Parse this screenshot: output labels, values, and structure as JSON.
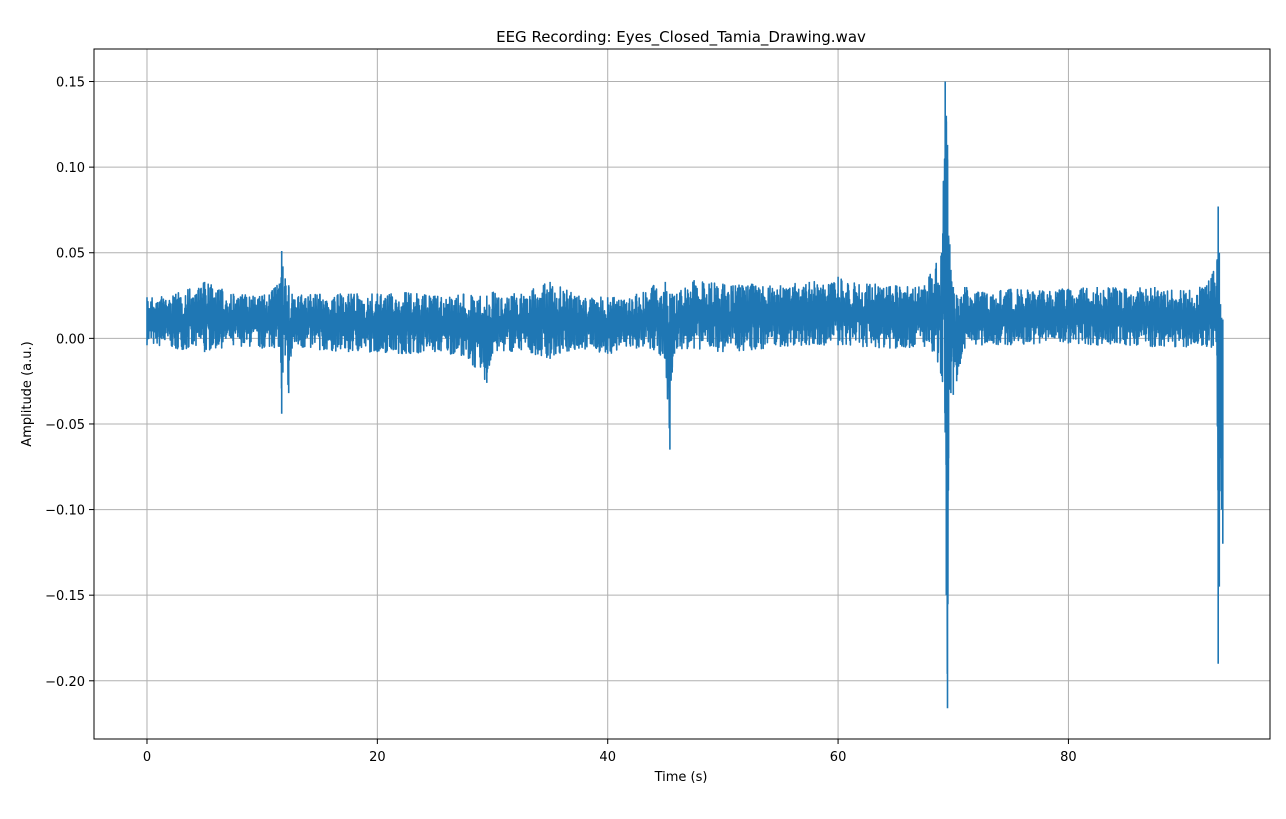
{
  "chart_data": {
    "type": "line",
    "title": "EEG Recording: Eyes_Closed_Tamia_Drawing.wav",
    "xlabel": "Time (s)",
    "ylabel": "Amplitude (a.u.)",
    "xlim": [
      -4.6,
      97.5
    ],
    "ylim": [
      -0.234,
      0.169
    ],
    "xticks": [
      0,
      20,
      40,
      60,
      80
    ],
    "xtick_labels": [
      "0",
      "20",
      "40",
      "60",
      "80"
    ],
    "yticks": [
      0.15,
      0.1,
      0.05,
      0.0,
      -0.05,
      -0.1,
      -0.15,
      -0.2
    ],
    "ytick_labels": [
      "0.15",
      "0.10",
      "0.05",
      "0.00",
      "−0.05",
      "−0.10",
      "−0.15",
      "−0.20"
    ],
    "grid": true,
    "line_color": "#1f77b4",
    "series": [
      {
        "x": [
          0,
          2.5,
          5,
          7.5,
          10,
          11.5,
          11.7,
          11.8,
          12,
          12.3,
          12.6,
          15,
          17.5,
          20,
          22.5,
          25,
          27.5,
          29.5,
          30,
          32.5,
          35,
          37.5,
          40,
          42.5,
          44,
          45,
          45.4,
          45.6,
          45.8,
          46,
          47.5,
          50,
          52.5,
          55,
          57.5,
          60,
          62.5,
          65,
          67.5,
          69,
          69.3,
          69.4,
          69.5,
          69.6,
          69.7,
          69.8,
          70,
          70.3,
          70.6,
          71,
          72.5,
          75,
          77.5,
          80,
          82.5,
          85,
          87.5,
          90,
          92,
          92.9,
          93,
          93.1,
          93.2,
          93.3,
          93.4
        ],
        "y_low": [
          -0.004,
          -0.006,
          -0.008,
          -0.004,
          -0.006,
          -0.005,
          -0.044,
          -0.02,
          -0.01,
          -0.032,
          -0.006,
          -0.007,
          -0.008,
          -0.008,
          -0.009,
          -0.008,
          -0.01,
          -0.026,
          -0.009,
          -0.007,
          -0.012,
          -0.006,
          -0.009,
          -0.006,
          -0.007,
          -0.012,
          -0.065,
          -0.02,
          -0.009,
          -0.006,
          -0.006,
          -0.008,
          -0.007,
          -0.005,
          -0.004,
          -0.004,
          -0.005,
          -0.006,
          -0.005,
          -0.022,
          -0.055,
          -0.15,
          -0.216,
          -0.07,
          -0.03,
          -0.032,
          -0.033,
          -0.025,
          -0.015,
          -0.006,
          -0.004,
          -0.004,
          -0.003,
          -0.003,
          -0.004,
          -0.004,
          -0.005,
          -0.005,
          -0.005,
          -0.01,
          -0.19,
          -0.145,
          -0.07,
          -0.1,
          -0.12
        ],
        "y_high": [
          0.024,
          0.026,
          0.033,
          0.026,
          0.025,
          0.032,
          0.051,
          0.042,
          0.035,
          0.031,
          0.026,
          0.026,
          0.026,
          0.026,
          0.027,
          0.025,
          0.026,
          0.025,
          0.027,
          0.026,
          0.033,
          0.025,
          0.024,
          0.026,
          0.031,
          0.033,
          0.026,
          0.026,
          0.025,
          0.026,
          0.034,
          0.032,
          0.032,
          0.031,
          0.033,
          0.036,
          0.032,
          0.031,
          0.031,
          0.05,
          0.15,
          0.13,
          0.113,
          0.06,
          0.055,
          0.04,
          0.03,
          0.025,
          0.023,
          0.03,
          0.027,
          0.029,
          0.028,
          0.029,
          0.03,
          0.029,
          0.03,
          0.028,
          0.031,
          0.045,
          0.077,
          0.05,
          0.02,
          0.012,
          0.011
        ]
      }
    ]
  }
}
